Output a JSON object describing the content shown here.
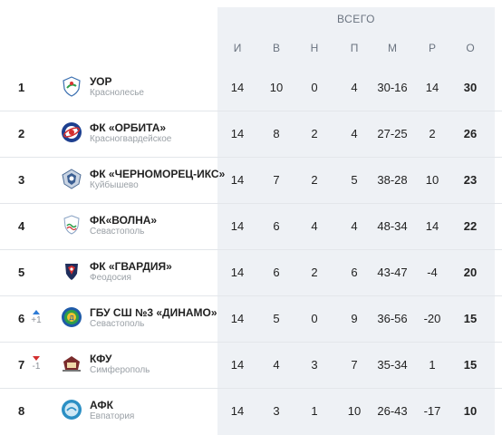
{
  "header": {
    "group_label": "ВСЕГО",
    "columns": [
      "И",
      "В",
      "Н",
      "П",
      "М",
      "Р",
      "О"
    ]
  },
  "rows": [
    {
      "pos": "1",
      "trend": null,
      "trend_value": "",
      "logo": "uor-crest-icon",
      "name": "УОР",
      "city": "Краснолесье",
      "played": "14",
      "won": "10",
      "drawn": "0",
      "lost": "4",
      "goals": "30-16",
      "diff": "14",
      "points": "30"
    },
    {
      "pos": "2",
      "trend": null,
      "trend_value": "",
      "logo": "orbita-crest-icon",
      "name": "ФК «ОРБИТА»",
      "city": "Красногвардейское",
      "played": "14",
      "won": "8",
      "drawn": "2",
      "lost": "4",
      "goals": "27-25",
      "diff": "2",
      "points": "26"
    },
    {
      "pos": "3",
      "trend": null,
      "trend_value": "",
      "logo": "chernomorets-crest-icon",
      "name": "ФК «ЧЕРНОМОРЕЦ-ИКС»",
      "city": "Куйбышево",
      "played": "14",
      "won": "7",
      "drawn": "2",
      "lost": "5",
      "goals": "38-28",
      "diff": "10",
      "points": "23"
    },
    {
      "pos": "4",
      "trend": null,
      "trend_value": "",
      "logo": "volna-crest-icon",
      "name": "ФК«ВОЛНА»",
      "city": "Севастополь",
      "played": "14",
      "won": "6",
      "drawn": "4",
      "lost": "4",
      "goals": "48-34",
      "diff": "14",
      "points": "22"
    },
    {
      "pos": "5",
      "trend": null,
      "trend_value": "",
      "logo": "gvardiya-crest-icon",
      "name": "ФК «ГВАРДИЯ»",
      "city": "Феодосия",
      "played": "14",
      "won": "6",
      "drawn": "2",
      "lost": "6",
      "goals": "43-47",
      "diff": "-4",
      "points": "20"
    },
    {
      "pos": "6",
      "trend": "up",
      "trend_value": "+1",
      "logo": "dinamo-crest-icon",
      "name": "ГБУ СШ №3 «ДИНАМО»",
      "city": "Севастополь",
      "played": "14",
      "won": "5",
      "drawn": "0",
      "lost": "9",
      "goals": "36-56",
      "diff": "-20",
      "points": "15"
    },
    {
      "pos": "7",
      "trend": "down",
      "trend_value": "-1",
      "logo": "kfu-crest-icon",
      "name": "КФУ",
      "city": "Симферополь",
      "played": "14",
      "won": "4",
      "drawn": "3",
      "lost": "7",
      "goals": "35-34",
      "diff": "1",
      "points": "15"
    },
    {
      "pos": "8",
      "trend": null,
      "trend_value": "",
      "logo": "afk-crest-icon",
      "name": "АФК",
      "city": "Евпатория",
      "played": "14",
      "won": "3",
      "drawn": "1",
      "lost": "10",
      "goals": "26-43",
      "diff": "-17",
      "points": "10"
    }
  ],
  "colors": {
    "stats_background": "#eef1f5",
    "trend_up": "#2e7bd6",
    "trend_down": "#d32f2f"
  }
}
